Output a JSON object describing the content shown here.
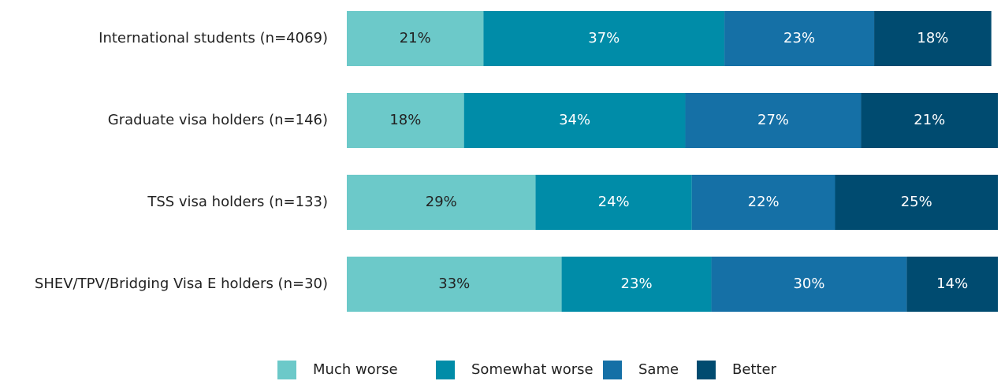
{
  "chart_data": {
    "type": "stacked-bar-horizontal",
    "categories": [
      "International students (n=4069)",
      "Graduate visa holders (n=146)",
      "TSS visa holders (n=133)",
      "SHEV/TPV/Bridging Visa E holders (n=30)"
    ],
    "series": [
      {
        "name": "Much worse",
        "color": "#6cc9c9",
        "values": [
          21,
          18,
          29,
          33
        ],
        "value_labels": [
          "21%",
          "18%",
          "29%",
          "33%"
        ]
      },
      {
        "name": "Somewhat worse",
        "color": "#008ca8",
        "values": [
          37,
          34,
          24,
          23
        ],
        "value_labels": [
          "37%",
          "34%",
          "24%",
          "23%"
        ]
      },
      {
        "name": "Same",
        "color": "#1570a6",
        "values": [
          23,
          27,
          22,
          30
        ],
        "value_labels": [
          "23%",
          "27%",
          "22%",
          "30%"
        ]
      },
      {
        "name": "Better",
        "color": "#004b70",
        "values": [
          18,
          21,
          25,
          14
        ],
        "value_labels": [
          "18%",
          "21%",
          "25%",
          "14%"
        ]
      }
    ],
    "xlim": [
      0,
      100
    ],
    "legend": "bottom"
  }
}
